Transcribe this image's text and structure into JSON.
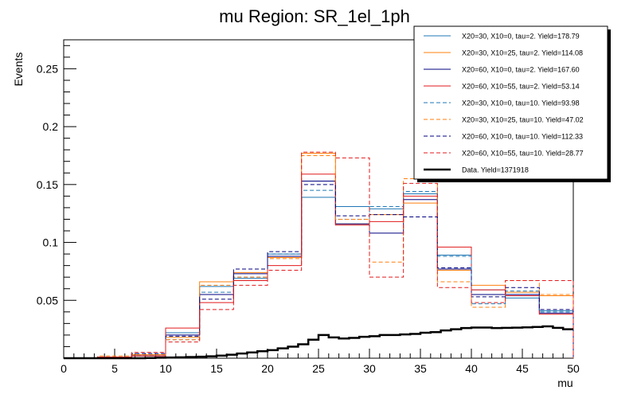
{
  "chart_data": {
    "type": "step-histogram",
    "title": "mu Region: SR_1el_1ph",
    "xlabel": "mu",
    "ylabel": "Events",
    "xlim": [
      0,
      50
    ],
    "ylim": [
      0,
      0.275
    ],
    "xticks": [
      "0",
      "5",
      "10",
      "15",
      "20",
      "25",
      "30",
      "35",
      "40",
      "45",
      "50"
    ],
    "yticks": [
      "0.05",
      "0.1",
      "0.15",
      "0.2",
      "0.25"
    ],
    "ytick_values": [
      0.05,
      0.1,
      0.15,
      0.2,
      0.25
    ],
    "bin_edges": [
      0,
      3.333,
      6.667,
      10,
      13.333,
      16.667,
      20,
      23.333,
      26.667,
      30,
      33.333,
      36.667,
      40,
      43.333,
      46.667,
      50
    ],
    "series": [
      {
        "name": "X20=30, X10=0, tau=2. Yield=178.79",
        "color": "#1f77b4",
        "dash": false,
        "values": [
          0,
          0.001,
          0.002,
          0.022,
          0.062,
          0.069,
          0.09,
          0.139,
          0.131,
          0.129,
          0.142,
          0.089,
          0.059,
          0.052,
          0.041
        ]
      },
      {
        "name": "X20=30, X10=25, tau=2. Yield=114.08",
        "color": "#ff7f0e",
        "dash": false,
        "values": [
          0,
          0.001,
          0.003,
          0.018,
          0.066,
          0.074,
          0.087,
          0.177,
          0.116,
          0.124,
          0.134,
          0.076,
          0.063,
          0.057,
          0.054
        ]
      },
      {
        "name": "X20=60, X10=0, tau=2. Yield=167.60",
        "color": "#000080",
        "dash": false,
        "values": [
          0,
          0.001,
          0.002,
          0.02,
          0.055,
          0.073,
          0.088,
          0.153,
          0.116,
          0.108,
          0.137,
          0.077,
          0.055,
          0.055,
          0.039
        ]
      },
      {
        "name": "X20=60, X10=55, tau=2. Yield=53.14",
        "color": "#e31a1c",
        "dash": false,
        "values": [
          0,
          0.001,
          0.002,
          0.026,
          0.048,
          0.067,
          0.08,
          0.159,
          0.115,
          0.118,
          0.14,
          0.096,
          0.059,
          0.054,
          0.038
        ]
      },
      {
        "name": "X20=30, X10=0, tau=10. Yield=93.98",
        "color": "#1f77b4",
        "dash": true,
        "values": [
          0,
          0.001,
          0.003,
          0.016,
          0.057,
          0.07,
          0.09,
          0.145,
          0.12,
          0.131,
          0.144,
          0.088,
          0.047,
          0.058,
          0.04
        ]
      },
      {
        "name": "X20=30, X10=25, tau=10. Yield=47.02",
        "color": "#ff7f0e",
        "dash": true,
        "values": [
          0,
          0.002,
          0.003,
          0.016,
          0.063,
          0.07,
          0.086,
          0.175,
          0.12,
          0.083,
          0.155,
          0.066,
          0.044,
          0.067,
          0.055
        ]
      },
      {
        "name": "X20=60, X10=0, tau=10. Yield=112.33",
        "color": "#000080",
        "dash": true,
        "values": [
          0,
          0.001,
          0.004,
          0.019,
          0.051,
          0.077,
          0.092,
          0.15,
          0.123,
          0.124,
          0.122,
          0.078,
          0.053,
          0.061,
          0.042
        ]
      },
      {
        "name": "X20=60, X10=55, tau=10. Yield=28.77",
        "color": "#e31a1c",
        "dash": true,
        "values": [
          0,
          0.001,
          0.005,
          0.014,
          0.042,
          0.063,
          0.076,
          0.178,
          0.173,
          0.07,
          0.151,
          0.061,
          0.048,
          0.067,
          0.067
        ]
      }
    ],
    "data_series": {
      "name": "Data. Yield=1371918",
      "color": "#000000",
      "x": [
        0,
        1,
        2,
        3,
        4,
        5,
        6,
        7,
        8,
        9,
        10,
        11,
        12,
        13,
        14,
        15,
        16,
        17,
        18,
        19,
        20,
        21,
        22,
        23,
        24,
        25,
        26,
        27,
        28,
        29,
        30,
        31,
        32,
        33,
        34,
        35,
        36,
        37,
        38,
        39,
        40,
        41,
        42,
        43,
        44,
        45,
        46,
        47,
        48,
        49,
        50
      ],
      "y": [
        0,
        0,
        0,
        0,
        0,
        0,
        0,
        0,
        0.0002,
        0.0004,
        0.0006,
        0.0008,
        0.001,
        0.0013,
        0.0016,
        0.0022,
        0.003,
        0.004,
        0.005,
        0.006,
        0.007,
        0.0085,
        0.01,
        0.012,
        0.016,
        0.02,
        0.018,
        0.017,
        0.0175,
        0.0185,
        0.019,
        0.02,
        0.02,
        0.0205,
        0.021,
        0.022,
        0.0225,
        0.024,
        0.025,
        0.026,
        0.0265,
        0.0265,
        0.026,
        0.0262,
        0.0264,
        0.0266,
        0.027,
        0.0275,
        0.0262,
        0.025,
        0.0235
      ]
    }
  }
}
